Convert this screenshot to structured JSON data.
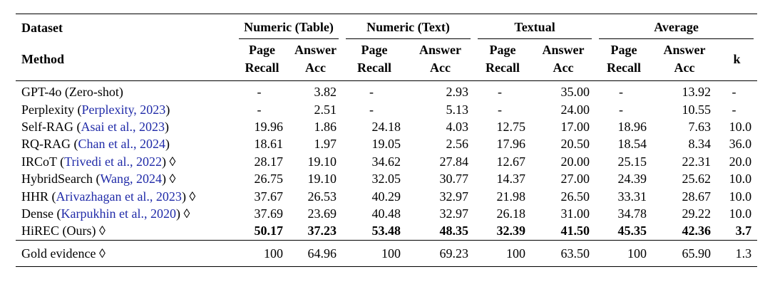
{
  "header": {
    "dataset": "Dataset",
    "method": "Method",
    "groups": [
      "Numeric (Table)",
      "Numeric (Text)",
      "Textual",
      "Average"
    ],
    "columns": [
      [
        "Page",
        "Recall"
      ],
      [
        "Answer",
        "Acc"
      ],
      [
        "Page",
        "Recall"
      ],
      [
        "Answer",
        "Acc"
      ],
      [
        "Page",
        "Recall"
      ],
      [
        "Answer",
        "Acc"
      ],
      [
        "Page",
        "Recall"
      ],
      [
        "Answer",
        "Acc"
      ],
      [
        "k"
      ]
    ]
  },
  "rows": [
    {
      "method": [
        {
          "text": "GPT-4o (Zero-shot)"
        }
      ],
      "values": [
        "-",
        "3.82",
        "-",
        "2.93",
        "-",
        "35.00",
        "-",
        "13.92",
        "-"
      ],
      "bold": false
    },
    {
      "method": [
        {
          "text": "Perplexity ("
        },
        {
          "text": "Perplexity, 2023",
          "cite": true
        },
        {
          "text": ")"
        }
      ],
      "values": [
        "-",
        "2.51",
        "-",
        "5.13",
        "-",
        "24.00",
        "-",
        "10.55",
        "-"
      ],
      "bold": false
    },
    {
      "method": [
        {
          "text": "Self-RAG ("
        },
        {
          "text": "Asai et al., 2023",
          "cite": true
        },
        {
          "text": ")"
        }
      ],
      "values": [
        "19.96",
        "1.86",
        "24.18",
        "4.03",
        "12.75",
        "17.00",
        "18.96",
        "7.63",
        "10.0"
      ],
      "bold": false
    },
    {
      "method": [
        {
          "text": "RQ-RAG ("
        },
        {
          "text": "Chan et al., 2024",
          "cite": true
        },
        {
          "text": ")"
        }
      ],
      "values": [
        "18.61",
        "1.97",
        "19.05",
        "2.56",
        "17.96",
        "20.50",
        "18.54",
        "8.34",
        "36.0"
      ],
      "bold": false
    },
    {
      "method": [
        {
          "text": "IRCoT ("
        },
        {
          "text": "Trivedi et al., 2022",
          "cite": true
        },
        {
          "text": ") ◊"
        }
      ],
      "values": [
        "28.17",
        "19.10",
        "34.62",
        "27.84",
        "12.67",
        "20.00",
        "25.15",
        "22.31",
        "20.0"
      ],
      "bold": false
    },
    {
      "method": [
        {
          "text": "HybridSearch ("
        },
        {
          "text": "Wang, 2024",
          "cite": true
        },
        {
          "text": ") ◊"
        }
      ],
      "values": [
        "26.75",
        "19.10",
        "32.05",
        "30.77",
        "14.37",
        "27.00",
        "24.39",
        "25.62",
        "10.0"
      ],
      "bold": false
    },
    {
      "method": [
        {
          "text": "HHR ("
        },
        {
          "text": "Arivazhagan et al., 2023",
          "cite": true
        },
        {
          "text": ") ◊"
        }
      ],
      "values": [
        "37.67",
        "26.53",
        "40.29",
        "32.97",
        "21.98",
        "26.50",
        "33.31",
        "28.67",
        "10.0"
      ],
      "bold": false
    },
    {
      "method": [
        {
          "text": "Dense ("
        },
        {
          "text": "Karpukhin et al., 2020",
          "cite": true
        },
        {
          "text": ") ◊"
        }
      ],
      "values": [
        "37.69",
        "23.69",
        "40.48",
        "32.97",
        "26.18",
        "31.00",
        "34.78",
        "29.22",
        "10.0"
      ],
      "bold": false
    },
    {
      "method": [
        {
          "text": "HiREC (Ours) ◊"
        }
      ],
      "values": [
        "50.17",
        "37.23",
        "53.48",
        "48.35",
        "32.39",
        "41.50",
        "45.35",
        "42.36",
        "3.7"
      ],
      "bold": true
    }
  ],
  "gold": {
    "method": [
      {
        "text": "Gold evidence ◊"
      }
    ],
    "values": [
      "100",
      "64.96",
      "100",
      "69.23",
      "100",
      "63.50",
      "100",
      "65.90",
      "1.3"
    ],
    "bold": false
  }
}
